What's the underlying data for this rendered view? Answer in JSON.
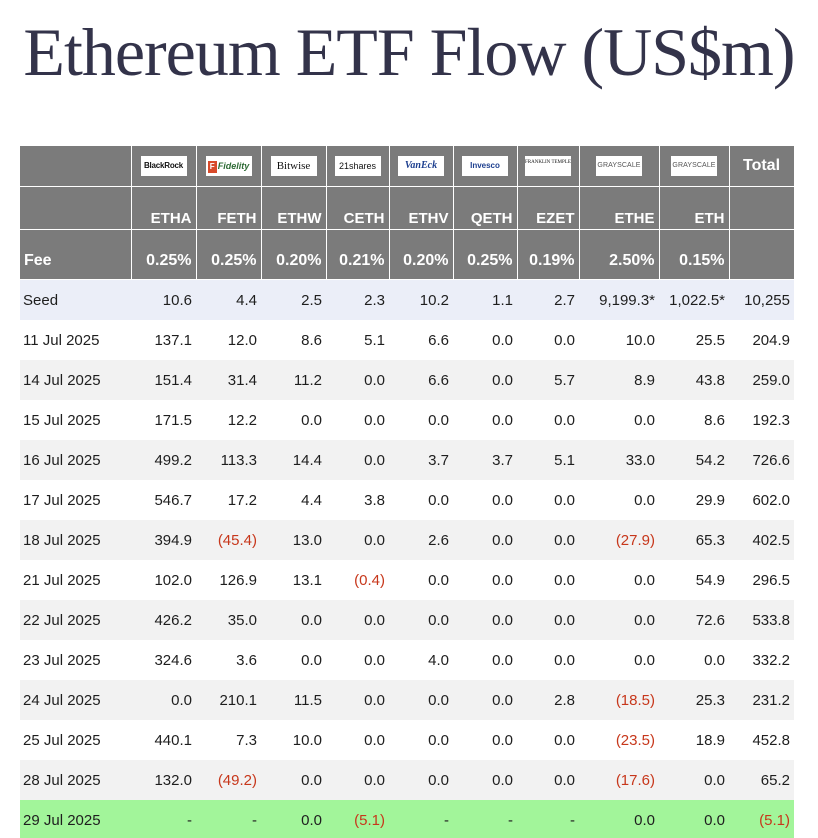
{
  "title": "Ethereum ETF Flow (US$m)",
  "colors": {
    "header_bg": "#7b7b7b",
    "seed_row_bg": "#ebeef8",
    "alt_row_bg": "#f2f2f2",
    "highlight_row_bg": "#a2f59a",
    "negative_text": "#c7371b",
    "title_color": "#33334a"
  },
  "issuers": [
    {
      "key": "blackrock",
      "logo_text": "BlackRock",
      "ticker": "ETHA",
      "fee": "0.25%"
    },
    {
      "key": "fidelity",
      "logo_icon": "F",
      "logo_text": "Fidelity",
      "ticker": "FETH",
      "fee": "0.25%"
    },
    {
      "key": "bitwise",
      "logo_text": "Bitwise",
      "ticker": "ETHW",
      "fee": "0.20%"
    },
    {
      "key": "21shares",
      "logo_text": "21shares",
      "ticker": "CETH",
      "fee": "0.21%"
    },
    {
      "key": "vaneck",
      "logo_text": "VanEck",
      "ticker": "ETHV",
      "fee": "0.20%"
    },
    {
      "key": "invesco",
      "logo_text": "Invesco",
      "ticker": "QETH",
      "fee": "0.25%"
    },
    {
      "key": "franklin",
      "logo_text": "FRANKLIN TEMPLETON",
      "ticker": "EZET",
      "fee": "0.19%"
    },
    {
      "key": "grayscale-ethe",
      "logo_text": "GRAYSCALE",
      "ticker": "ETHE",
      "fee": "2.50%"
    },
    {
      "key": "grayscale-eth",
      "logo_text": "GRAYSCALE",
      "ticker": "ETH",
      "fee": "0.15%"
    }
  ],
  "header": {
    "total_label": "Total",
    "fee_label": "Fee"
  },
  "rows": [
    {
      "date": "Seed",
      "values": [
        "10.6",
        "4.4",
        "2.5",
        "2.3",
        "10.2",
        "1.1",
        "2.7",
        "9,199.3*",
        "1,022.5*"
      ],
      "total": "10,255"
    },
    {
      "date": "11 Jul 2025",
      "values": [
        "137.1",
        "12.0",
        "8.6",
        "5.1",
        "6.6",
        "0.0",
        "0.0",
        "10.0",
        "25.5"
      ],
      "total": "204.9"
    },
    {
      "date": "14 Jul 2025",
      "values": [
        "151.4",
        "31.4",
        "11.2",
        "0.0",
        "6.6",
        "0.0",
        "5.7",
        "8.9",
        "43.8"
      ],
      "total": "259.0"
    },
    {
      "date": "15 Jul 2025",
      "values": [
        "171.5",
        "12.2",
        "0.0",
        "0.0",
        "0.0",
        "0.0",
        "0.0",
        "0.0",
        "8.6"
      ],
      "total": "192.3"
    },
    {
      "date": "16 Jul 2025",
      "values": [
        "499.2",
        "113.3",
        "14.4",
        "0.0",
        "3.7",
        "3.7",
        "5.1",
        "33.0",
        "54.2"
      ],
      "total": "726.6"
    },
    {
      "date": "17 Jul 2025",
      "values": [
        "546.7",
        "17.2",
        "4.4",
        "3.8",
        "0.0",
        "0.0",
        "0.0",
        "0.0",
        "29.9"
      ],
      "total": "602.0"
    },
    {
      "date": "18 Jul 2025",
      "values": [
        "394.9",
        "(45.4)",
        "13.0",
        "0.0",
        "2.6",
        "0.0",
        "0.0",
        "(27.9)",
        "65.3"
      ],
      "total": "402.5"
    },
    {
      "date": "21 Jul 2025",
      "values": [
        "102.0",
        "126.9",
        "13.1",
        "(0.4)",
        "0.0",
        "0.0",
        "0.0",
        "0.0",
        "54.9"
      ],
      "total": "296.5"
    },
    {
      "date": "22 Jul 2025",
      "values": [
        "426.2",
        "35.0",
        "0.0",
        "0.0",
        "0.0",
        "0.0",
        "0.0",
        "0.0",
        "72.6"
      ],
      "total": "533.8"
    },
    {
      "date": "23 Jul 2025",
      "values": [
        "324.6",
        "3.6",
        "0.0",
        "0.0",
        "4.0",
        "0.0",
        "0.0",
        "0.0",
        "0.0"
      ],
      "total": "332.2"
    },
    {
      "date": "24 Jul 2025",
      "values": [
        "0.0",
        "210.1",
        "11.5",
        "0.0",
        "0.0",
        "0.0",
        "2.8",
        "(18.5)",
        "25.3"
      ],
      "total": "231.2"
    },
    {
      "date": "25 Jul 2025",
      "values": [
        "440.1",
        "7.3",
        "10.0",
        "0.0",
        "0.0",
        "0.0",
        "0.0",
        "(23.5)",
        "18.9"
      ],
      "total": "452.8"
    },
    {
      "date": "28 Jul 2025",
      "values": [
        "132.0",
        "(49.2)",
        "0.0",
        "0.0",
        "0.0",
        "0.0",
        "0.0",
        "(17.6)",
        "0.0"
      ],
      "total": "65.2"
    },
    {
      "date": "29 Jul 2025",
      "values": [
        "-",
        "-",
        "0.0",
        "(5.1)",
        "-",
        "-",
        "-",
        "0.0",
        "0.0"
      ],
      "total": "(5.1)"
    }
  ]
}
